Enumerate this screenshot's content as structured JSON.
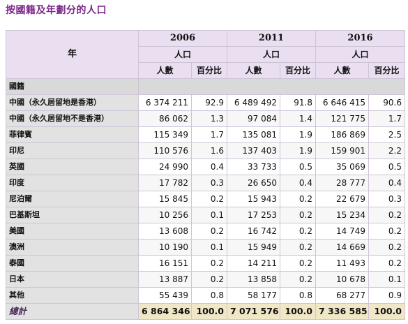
{
  "page_title": "按國籍及年劃分的人口",
  "headers": {
    "year_label": "年",
    "years": [
      "2006",
      "2011",
      "2016"
    ],
    "population_label": "人口",
    "count_label": "人數",
    "percent_label": "百分比"
  },
  "section_label": "國籍",
  "rows": [
    {
      "label": "中國（永久居留地是香港）",
      "values": [
        [
          "6 374 211",
          "92.9"
        ],
        [
          "6 489 492",
          "91.8"
        ],
        [
          "6 646 415",
          "90.6"
        ]
      ]
    },
    {
      "label": "中國（永久居留地不是香港）",
      "values": [
        [
          "86 062",
          "1.3"
        ],
        [
          "97 084",
          "1.4"
        ],
        [
          "121 775",
          "1.7"
        ]
      ]
    },
    {
      "label": "菲律賓",
      "values": [
        [
          "115 349",
          "1.7"
        ],
        [
          "135 081",
          "1.9"
        ],
        [
          "186 869",
          "2.5"
        ]
      ]
    },
    {
      "label": "印尼",
      "values": [
        [
          "110 576",
          "1.6"
        ],
        [
          "137 403",
          "1.9"
        ],
        [
          "159 901",
          "2.2"
        ]
      ]
    },
    {
      "label": "英國",
      "values": [
        [
          "24 990",
          "0.4"
        ],
        [
          "33 733",
          "0.5"
        ],
        [
          "35 069",
          "0.5"
        ]
      ]
    },
    {
      "label": "印度",
      "values": [
        [
          "17 782",
          "0.3"
        ],
        [
          "26 650",
          "0.4"
        ],
        [
          "28 777",
          "0.4"
        ]
      ]
    },
    {
      "label": "尼泊爾",
      "values": [
        [
          "15 845",
          "0.2"
        ],
        [
          "15 943",
          "0.2"
        ],
        [
          "22 679",
          "0.3"
        ]
      ]
    },
    {
      "label": "巴基斯坦",
      "values": [
        [
          "10 256",
          "0.1"
        ],
        [
          "17 253",
          "0.2"
        ],
        [
          "15 234",
          "0.2"
        ]
      ]
    },
    {
      "label": "美國",
      "values": [
        [
          "13 608",
          "0.2"
        ],
        [
          "16 742",
          "0.2"
        ],
        [
          "14 749",
          "0.2"
        ]
      ]
    },
    {
      "label": "澳洲",
      "values": [
        [
          "10 190",
          "0.1"
        ],
        [
          "15 949",
          "0.2"
        ],
        [
          "14 669",
          "0.2"
        ]
      ]
    },
    {
      "label": "泰國",
      "values": [
        [
          "16 151",
          "0.2"
        ],
        [
          "14 211",
          "0.2"
        ],
        [
          "11 493",
          "0.2"
        ]
      ]
    },
    {
      "label": "日本",
      "values": [
        [
          "13 887",
          "0.2"
        ],
        [
          "13 858",
          "0.2"
        ],
        [
          "10 678",
          "0.1"
        ]
      ]
    },
    {
      "label": "其他",
      "values": [
        [
          "55 439",
          "0.8"
        ],
        [
          "58 177",
          "0.8"
        ],
        [
          "68 277",
          "0.9"
        ]
      ]
    }
  ],
  "total": {
    "label": "總計",
    "values": [
      [
        "6 864 346",
        "100.0"
      ],
      [
        "7 071 576",
        "100.0"
      ],
      [
        "7 336 585",
        "100.0"
      ]
    ]
  }
}
